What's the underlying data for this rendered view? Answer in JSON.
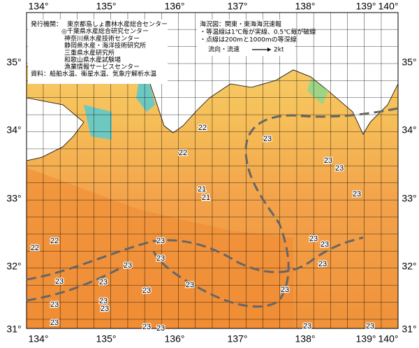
{
  "map": {
    "longitude_labels": [
      "134°",
      "135°",
      "136°",
      "137°",
      "138°",
      "139°",
      "140°"
    ],
    "latitude_labels": [
      "35°",
      "34°",
      "33°",
      "32°",
      "31°"
    ],
    "info": {
      "publisher_label": "発行機関：",
      "publishers": [
        "東京都島しょ農林水産総合センター",
        "◎千葉県水産総合研究センター",
        "神奈川県水産技術センター",
        "静岡県水産・海洋技術研究所",
        "三重県水産研究所",
        "和歌山県水産試験場",
        "漁業情報サービスセンター"
      ],
      "source": "資料：船舶水温、衛星水温、気象庁解析水温"
    },
    "legend": {
      "title": "海況図：関東・東海海況速報",
      "notes": [
        "・等温線は1℃毎が実線、0.5℃毎が破線",
        "・点線は200mと1000mの等深線"
      ],
      "current_label": "流向・流速",
      "current_scale": "2kt"
    },
    "contour_labels": [
      "22",
      "22",
      "23",
      "23",
      "23",
      "21",
      "21",
      "23",
      "22",
      "22",
      "23",
      "23",
      "23",
      "23",
      "23",
      "23",
      "23",
      "23",
      "23",
      "23",
      "23",
      "23",
      "23",
      "23",
      "23",
      "23",
      "23",
      "23",
      "23"
    ]
  }
}
